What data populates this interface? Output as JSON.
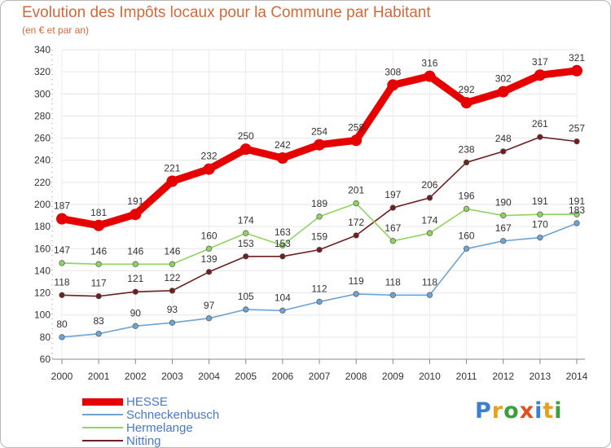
{
  "chart_data": {
    "type": "line",
    "title": "Evolution des Impôts locaux pour la Commune par Habitant",
    "subtitle": "(en € et par an)",
    "x": [
      "2000",
      "2001",
      "2002",
      "2003",
      "2004",
      "2005",
      "2006",
      "2007",
      "2008",
      "2009",
      "2010",
      "2011",
      "2012",
      "2013",
      "2014"
    ],
    "ylim": [
      60,
      340
    ],
    "yticks": [
      "60",
      "80",
      "100",
      "120",
      "140",
      "160",
      "180",
      "200",
      "220",
      "240",
      "260",
      "280",
      "300",
      "320",
      "340"
    ],
    "grid": true,
    "legend_position": "bottom-left",
    "series": [
      {
        "name": "HESSE",
        "color": "#e60000",
        "values": [
          187,
          181,
          191,
          221,
          232,
          250,
          242,
          254,
          258,
          308,
          316,
          292,
          302,
          317,
          321
        ],
        "labels": [
          "187",
          "181",
          "191",
          "221",
          "232",
          "250",
          "242",
          "254",
          "258",
          "308",
          "316",
          "292",
          "302",
          "317",
          "321"
        ]
      },
      {
        "name": "Schneckenbusch",
        "color": "#6ea4d4",
        "values": [
          80,
          83,
          90,
          93,
          97,
          105,
          104,
          112,
          119,
          118,
          118,
          160,
          167,
          170,
          183
        ],
        "labels": [
          "80",
          "83",
          "90",
          "93",
          "97",
          "105",
          "104",
          "112",
          "119",
          "118",
          "118",
          "160",
          "167",
          "170",
          "183"
        ]
      },
      {
        "name": "Hermelange",
        "color": "#8ed461",
        "values": [
          147,
          146,
          146,
          146,
          160,
          174,
          163,
          189,
          201,
          167,
          174,
          196,
          190,
          191,
          191
        ],
        "labels": [
          "147",
          "146",
          "146",
          "146",
          "160",
          "174",
          "163",
          "189",
          "201",
          "167",
          "174",
          "196",
          "190",
          "191",
          "191"
        ]
      },
      {
        "name": "Nitting",
        "color": "#6e2020",
        "values": [
          118,
          117,
          121,
          122,
          139,
          153,
          153,
          159,
          172,
          197,
          206,
          238,
          248,
          261,
          257
        ],
        "labels": [
          "118",
          "117",
          "121",
          "122",
          "139",
          "153",
          "153",
          "159",
          "172",
          "197",
          "206",
          "238",
          "248",
          "261",
          "257"
        ]
      }
    ]
  },
  "logo": {
    "text": "Proxiti",
    "colors": [
      "#3a7fd0",
      "#e8a020",
      "#3aa03a",
      "#e05020",
      "#3a7fd0",
      "#e8a020",
      "#3aa03a"
    ]
  }
}
